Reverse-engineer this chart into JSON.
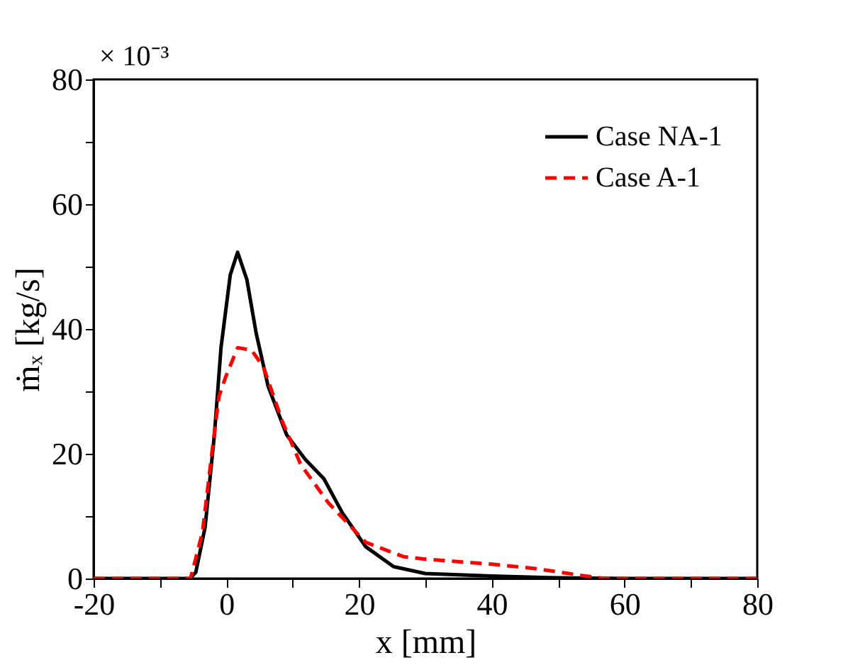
{
  "chart_data": {
    "type": "line",
    "xlabel": "x [mm]",
    "ylabel": "ṁₓ [kg/s]",
    "annotations": [
      "× 10⁻³"
    ],
    "xlim": [
      -20,
      80
    ],
    "xticks": [
      -20,
      {
        "value": -10,
        "label": null
      },
      0,
      {
        "value": 10,
        "label": null
      },
      20,
      {
        "value": 30,
        "label": null
      },
      40,
      {
        "value": 50,
        "label": null
      },
      60,
      {
        "value": 70,
        "label": null
      },
      80
    ],
    "ylim": [
      0,
      80
    ],
    "yticks": [
      0,
      {
        "value": 10,
        "label": null
      },
      20,
      {
        "value": 30,
        "label": null
      },
      40,
      {
        "value": 50,
        "label": null
      },
      60,
      {
        "value": 70,
        "label": null
      },
      80
    ],
    "grid": false,
    "legend": "top right",
    "marker": "none",
    "series": [
      {
        "name": "Case NA-1",
        "color": "#000000",
        "line_style": "solid",
        "x": [
          -20,
          -5.5,
          -4.6,
          -3.2,
          -1.8,
          -0.8,
          0.6,
          1.7,
          3.1,
          4.5,
          6.3,
          9.1,
          11.9,
          14.7,
          17.5,
          21,
          25.2,
          30,
          40,
          50,
          60,
          80
        ],
        "values": [
          0,
          0,
          1,
          8.2,
          23,
          37,
          48.7,
          52.3,
          47.9,
          39.3,
          30.8,
          23,
          19.1,
          16,
          10.5,
          5.1,
          1.9,
          0.8,
          0.4,
          0.1,
          0,
          0
        ]
      },
      {
        "name": "Case A-1",
        "color": "#ff0000",
        "line_style": "dashed",
        "x": [
          -20,
          -5.4,
          -3.6,
          -2.2,
          -1.1,
          -0.1,
          1.7,
          3.8,
          5.6,
          8.4,
          11.2,
          15.4,
          21,
          26.7,
          30,
          40,
          46.5,
          53.5,
          57,
          80
        ],
        "values": [
          0,
          0,
          7.4,
          19.9,
          29.2,
          32.3,
          37,
          36.6,
          33.9,
          25.3,
          18.3,
          12.1,
          5.8,
          3.5,
          3.1,
          2.3,
          1.6,
          0.5,
          0,
          0
        ]
      }
    ]
  }
}
